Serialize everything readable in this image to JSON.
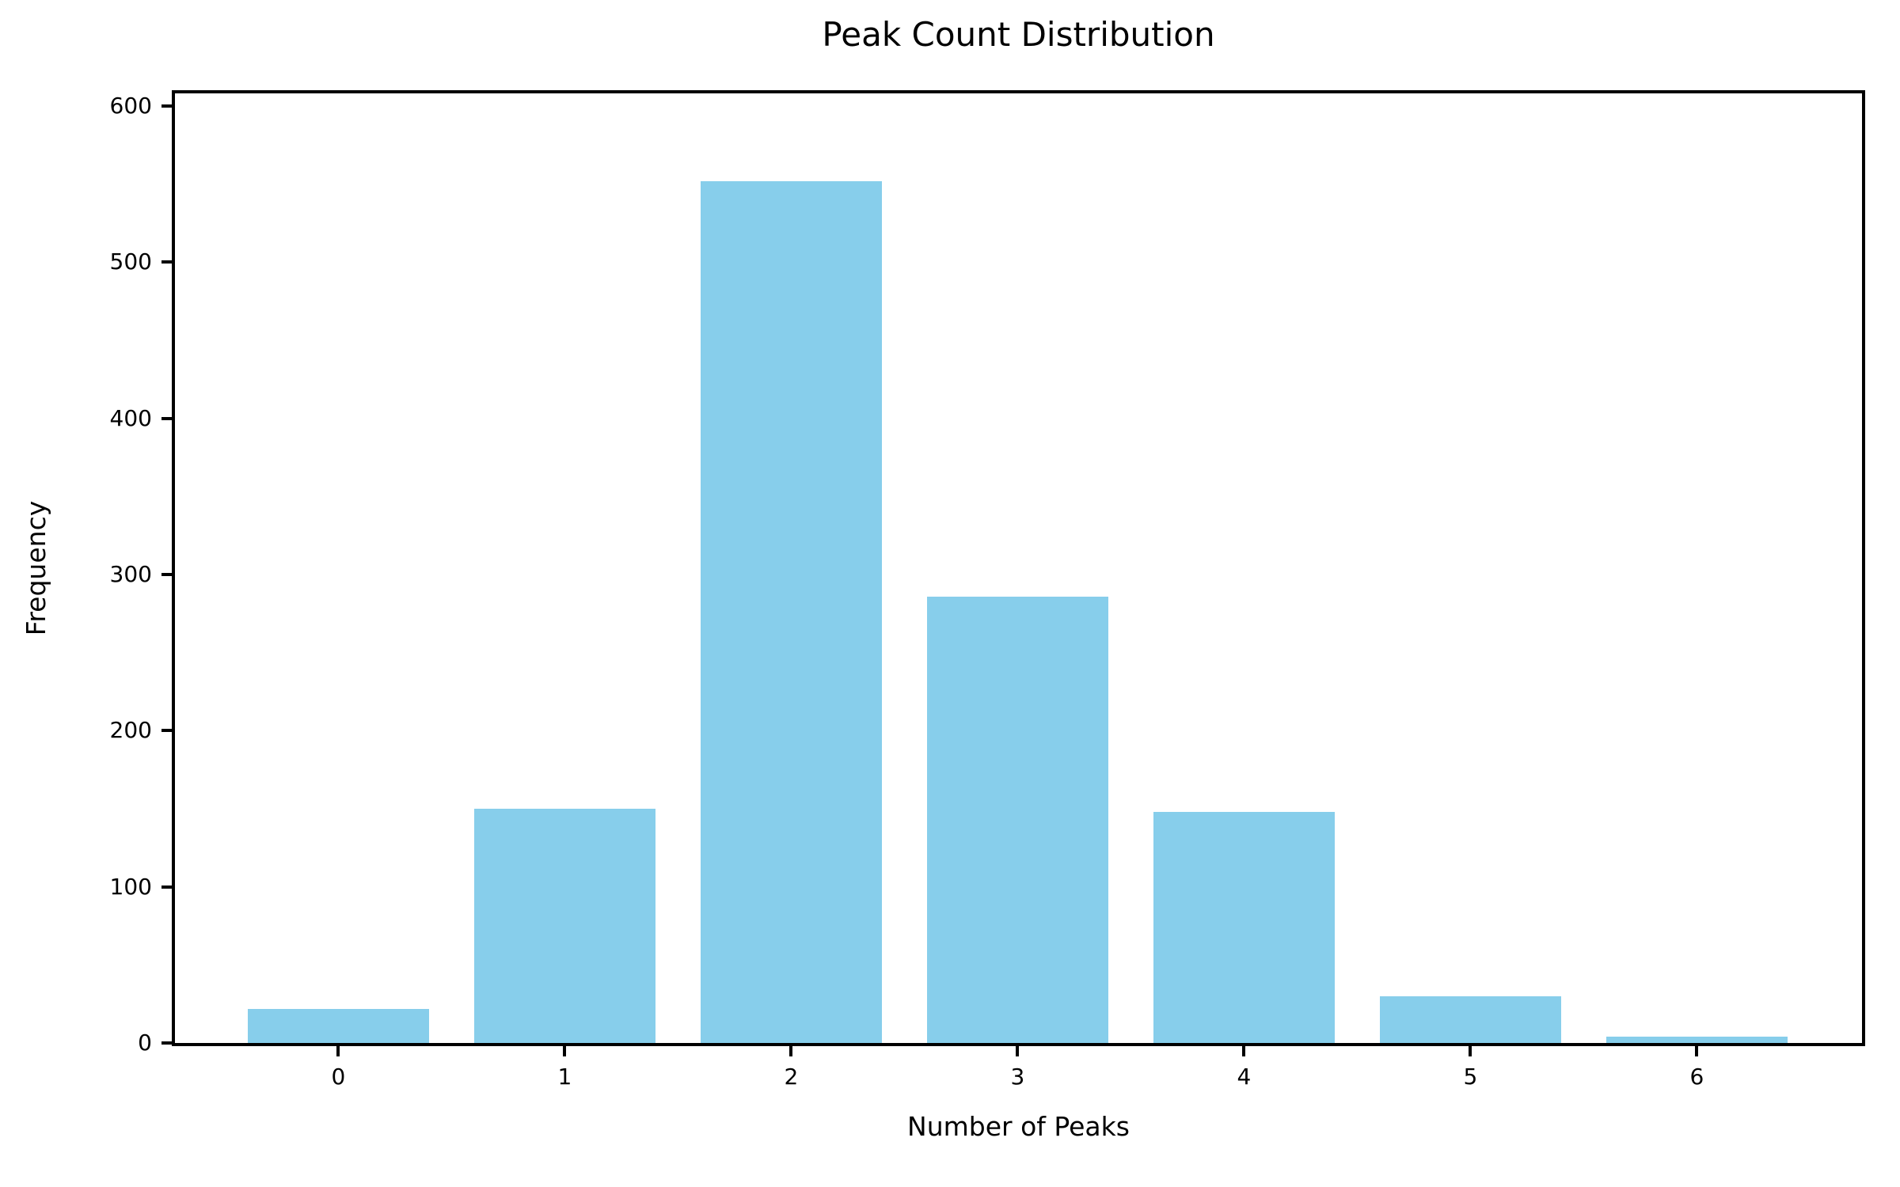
{
  "chart_data": {
    "type": "bar",
    "title": "Peak Count Distribution",
    "xlabel": "Number of Peaks",
    "ylabel": "Frequency",
    "categories": [
      "0",
      "1",
      "2",
      "3",
      "4",
      "5",
      "6"
    ],
    "values": [
      22,
      150,
      552,
      286,
      148,
      30,
      4
    ],
    "y_ticks": [
      0,
      100,
      200,
      300,
      400,
      500,
      600
    ],
    "ylim": [
      0,
      608
    ],
    "bar_color": "#87CEEB",
    "axis_color": "#000000",
    "background_color": "#FFFFFF",
    "grid": false,
    "legend": null
  }
}
